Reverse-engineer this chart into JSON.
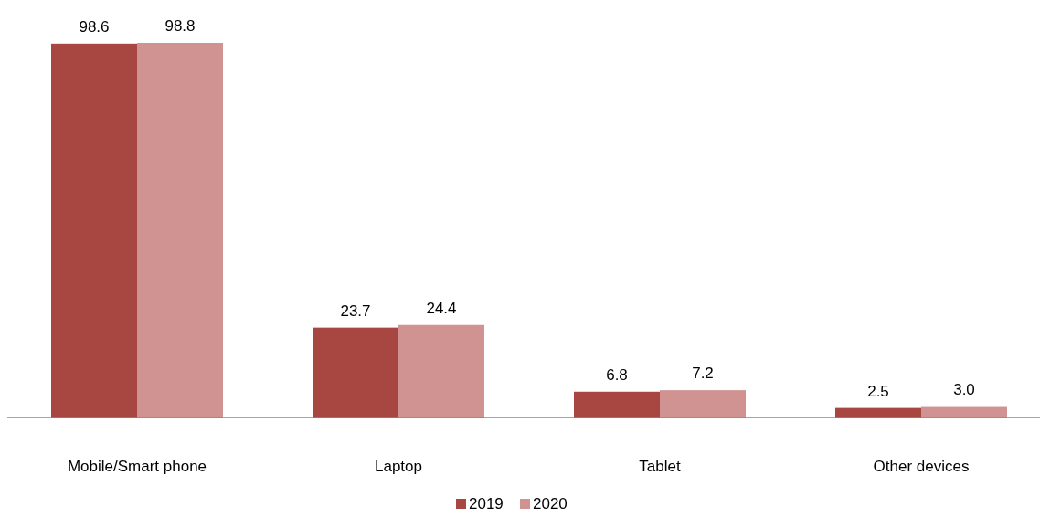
{
  "chart_data": {
    "type": "bar",
    "categories": [
      "Mobile/Smart phone",
      "Laptop",
      "Tablet",
      "Other devices"
    ],
    "series": [
      {
        "name": "2019",
        "color": "#a84642",
        "values": [
          98.6,
          23.7,
          6.8,
          2.5
        ],
        "value_labels": [
          "98.6",
          "23.7",
          "6.8",
          "2.5"
        ]
      },
      {
        "name": "2020",
        "color": "#d09391",
        "values": [
          98.8,
          24.4,
          7.2,
          3.0
        ],
        "value_labels": [
          "98.8",
          "24.4",
          "7.2",
          "3.0"
        ]
      }
    ],
    "legend": "bottom"
  }
}
